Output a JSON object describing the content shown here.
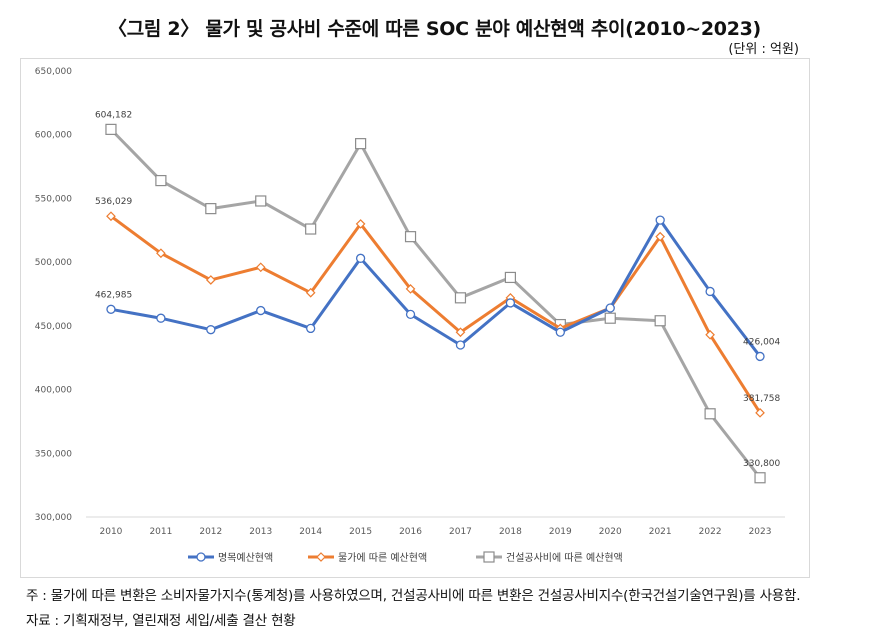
{
  "header": {
    "title": "〈그림 2〉 물가 및 공사비 수준에 따른 SOC 분야 예산현액 추이(2010~2023)",
    "unit": "(단위 : 억원)"
  },
  "notes": {
    "note": "주 : 물가에 따른 변환은 소비자물가지수(통계청)를 사용하였으며, 건설공사비에 따른 변환은 건설공사비지수(한국건설기술연구원)를 사용함.",
    "source": "자료 : 기획재정부, 열린재정 세입/세출 결산 현황"
  },
  "chart_data": {
    "type": "line",
    "title": "〈그림 2〉 물가 및 공사비 수준에 따른 SOC 분야 예산현액 추이(2010~2023)",
    "xlabel": "",
    "ylabel": "(단위 : 억원)",
    "categories": [
      "2010",
      "2011",
      "2012",
      "2013",
      "2014",
      "2015",
      "2016",
      "2017",
      "2018",
      "2019",
      "2020",
      "2021",
      "2022",
      "2023"
    ],
    "ylim": [
      300000,
      650000
    ],
    "yticks": [
      300000,
      350000,
      400000,
      450000,
      500000,
      550000,
      600000,
      650000
    ],
    "ytick_labels": [
      "300,000",
      "350,000",
      "400,000",
      "450,000",
      "500,000",
      "550,000",
      "600,000",
      "650,000"
    ],
    "grid": false,
    "legend_position": "bottom",
    "series": [
      {
        "name": "명목예산현액",
        "color": "#4472C4",
        "marker": "circle",
        "values": [
          462985,
          456000,
          447000,
          462000,
          448000,
          503000,
          459000,
          435000,
          468000,
          445000,
          464000,
          533000,
          477000,
          426004
        ],
        "labels": {
          "0": "462,985",
          "13": "426,004"
        }
      },
      {
        "name": "물가에 따른 예산현액",
        "color": "#ED7D31",
        "marker": "diamond",
        "values": [
          536029,
          507000,
          486000,
          496000,
          476000,
          530000,
          479000,
          445000,
          472000,
          448000,
          464000,
          520000,
          443000,
          381758
        ],
        "labels": {
          "0": "536,029",
          "13": "381,758"
        }
      },
      {
        "name": "건설공사비에 따른 예산현액",
        "color": "#A5A5A5",
        "marker": "square",
        "values": [
          604182,
          564000,
          542000,
          548000,
          526000,
          593000,
          520000,
          472000,
          488000,
          451000,
          456000,
          454000,
          381000,
          330800
        ],
        "labels": {
          "0": "604,182",
          "13": "330,800"
        }
      }
    ]
  }
}
